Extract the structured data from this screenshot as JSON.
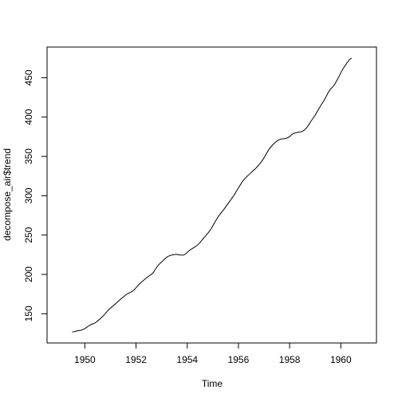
{
  "chart_data": {
    "type": "line",
    "xlabel": "Time",
    "ylabel": "decompose_air$trend",
    "xlim": [
      1948.523,
      1961.393
    ],
    "ylim": [
      112.86,
      488.97
    ],
    "xticks": [
      1950,
      1952,
      1954,
      1956,
      1958,
      1960
    ],
    "yticks": [
      150,
      200,
      250,
      300,
      350,
      400,
      450
    ],
    "x": [
      1949.5,
      1949.5833,
      1949.6667,
      1949.75,
      1949.8333,
      1949.9167,
      1950.0,
      1950.0833,
      1950.1667,
      1950.25,
      1950.3333,
      1950.4167,
      1950.5,
      1950.5833,
      1950.6667,
      1950.75,
      1950.8333,
      1950.9167,
      1951.0,
      1951.0833,
      1951.1667,
      1951.25,
      1951.3333,
      1951.4167,
      1951.5,
      1951.5833,
      1951.6667,
      1951.75,
      1951.8333,
      1951.9167,
      1952.0,
      1952.0833,
      1952.1667,
      1952.25,
      1952.3333,
      1952.4167,
      1952.5,
      1952.5833,
      1952.6667,
      1952.75,
      1952.8333,
      1952.9167,
      1953.0,
      1953.0833,
      1953.1667,
      1953.25,
      1953.3333,
      1953.4167,
      1953.5,
      1953.5833,
      1953.6667,
      1953.75,
      1953.8333,
      1953.9167,
      1954.0,
      1954.0833,
      1954.1667,
      1954.25,
      1954.3333,
      1954.4167,
      1954.5,
      1954.5833,
      1954.6667,
      1954.75,
      1954.8333,
      1954.9167,
      1955.0,
      1955.0833,
      1955.1667,
      1955.25,
      1955.3333,
      1955.4167,
      1955.5,
      1955.5833,
      1955.6667,
      1955.75,
      1955.8333,
      1955.9167,
      1956.0,
      1956.0833,
      1956.1667,
      1956.25,
      1956.3333,
      1956.4167,
      1956.5,
      1956.5833,
      1956.6667,
      1956.75,
      1956.8333,
      1956.9167,
      1957.0,
      1957.0833,
      1957.1667,
      1957.25,
      1957.3333,
      1957.4167,
      1957.5,
      1957.5833,
      1957.6667,
      1957.75,
      1957.8333,
      1957.9167,
      1958.0,
      1958.0833,
      1958.1667,
      1958.25,
      1958.3333,
      1958.4167,
      1958.5,
      1958.5833,
      1958.6667,
      1958.75,
      1958.8333,
      1958.9167,
      1959.0,
      1959.0833,
      1959.1667,
      1959.25,
      1959.3333,
      1959.4167,
      1959.5,
      1959.5833,
      1959.6667,
      1959.75,
      1959.8333,
      1959.9167,
      1960.0,
      1960.0833,
      1960.1667,
      1960.25,
      1960.3333,
      1960.4167
    ],
    "series": [
      {
        "color": "#000000",
        "values": [
          126.7917,
          127.25,
          127.9583,
          128.5833,
          129.0,
          129.75,
          131.25,
          133.0833,
          134.9167,
          136.4167,
          137.4167,
          138.75,
          140.9167,
          143.1667,
          145.7083,
          148.4167,
          151.5417,
          154.7083,
          157.125,
          159.5417,
          161.8333,
          164.125,
          166.6667,
          169.0833,
          171.25,
          173.5833,
          175.4583,
          176.8333,
          178.0417,
          180.1667,
          183.125,
          186.2083,
          189.0417,
          191.2917,
          193.5833,
          195.8333,
          198.0417,
          199.75,
          202.2083,
          206.25,
          210.4167,
          213.375,
          215.8333,
          218.5,
          220.9167,
          222.9167,
          224.0833,
          224.7083,
          225.3333,
          225.3333,
          224.9583,
          224.5833,
          224.4583,
          225.5417,
          228.0,
          230.4583,
          232.25,
          233.9167,
          235.625,
          237.75,
          240.5,
          243.9583,
          247.1667,
          250.25,
          253.5,
          257.125,
          261.8333,
          266.6667,
          271.125,
          275.2083,
          278.5,
          281.9583,
          285.75,
          289.3333,
          293.25,
          297.1667,
          301.0,
          305.4583,
          309.9583,
          314.4167,
          318.625,
          321.75,
          324.5,
          327.0833,
          329.5417,
          332.0833,
          334.4583,
          337.5417,
          340.5417,
          344.0833,
          348.25,
          353.0,
          357.625,
          361.375,
          364.5,
          367.1667,
          369.4583,
          371.2083,
          372.1667,
          372.4167,
          372.75,
          373.625,
          375.25,
          377.9167,
          379.5,
          380.0,
          380.7083,
          380.9583,
          381.8333,
          383.6667,
          386.5,
          390.3333,
          394.7083,
          398.625,
          402.5417,
          407.1667,
          411.875,
          416.3333,
          420.5,
          425.5,
          430.7083,
          435.125,
          437.7083,
          440.9583,
          445.8333,
          450.625,
          456.3333,
          461.375,
          465.2083,
          469.3333,
          472.75,
          475.0417
        ]
      }
    ]
  }
}
